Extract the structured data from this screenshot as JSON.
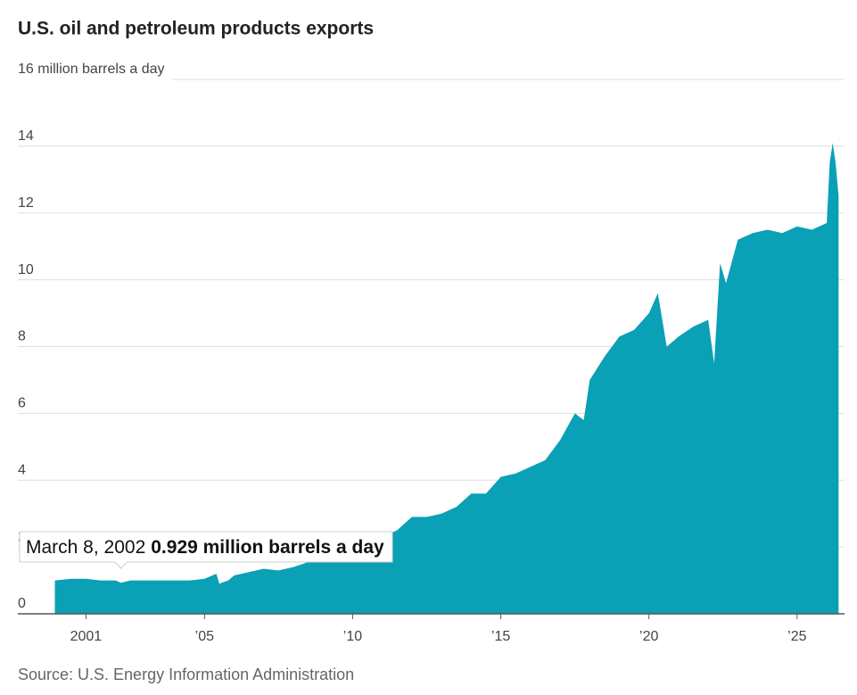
{
  "chart_data": {
    "type": "area",
    "title": "U.S. oil and petroleum products exports",
    "source": "Source: U.S. Energy Information Administration",
    "color": "#0aa0b6",
    "grid": true,
    "x": [
      1999.95,
      2000.5,
      2001,
      2001.5,
      2002,
      2002.18,
      2002.5,
      2003,
      2003.5,
      2004,
      2004.5,
      2005,
      2005.4,
      2005.5,
      2005.8,
      2006,
      2006.5,
      2007,
      2007.5,
      2008,
      2008.5,
      2009,
      2009.5,
      2010,
      2010.5,
      2011,
      2011.5,
      2012,
      2012.5,
      2013,
      2013.5,
      2014,
      2014.5,
      2015,
      2015.5,
      2016,
      2016.5,
      2017,
      2017.5,
      2017.8,
      2018,
      2018.5,
      2019,
      2019.5,
      2020,
      2020.3,
      2020.6,
      2021,
      2021.5,
      2022,
      2022.2,
      2022.4,
      2022.6,
      2023,
      2023.5,
      2024,
      2024.5,
      2025,
      2025.5,
      2026,
      2026.1,
      2026.2,
      2026.3,
      2026.4
    ],
    "values": [
      1.0,
      1.05,
      1.05,
      1.0,
      1.0,
      0.929,
      1.0,
      1.0,
      1.0,
      1.0,
      1.0,
      1.05,
      1.2,
      0.9,
      1.0,
      1.15,
      1.25,
      1.35,
      1.3,
      1.4,
      1.55,
      1.65,
      1.7,
      1.8,
      2.0,
      2.3,
      2.5,
      2.9,
      2.9,
      3.0,
      3.2,
      3.6,
      3.6,
      4.1,
      4.2,
      4.4,
      4.6,
      5.2,
      6.0,
      5.8,
      7.0,
      7.7,
      8.3,
      8.5,
      9.0,
      9.6,
      8.0,
      8.3,
      8.6,
      8.8,
      7.5,
      10.5,
      9.9,
      11.2,
      11.4,
      11.5,
      11.4,
      11.6,
      11.5,
      11.7,
      13.5,
      14.1,
      13.5,
      12.5
    ],
    "xlim": [
      1998.7,
      2026.6
    ],
    "xticks": [
      2001,
      {
        "value": 2005,
        "label": "’05"
      },
      {
        "value": 2010,
        "label": "’10"
      },
      {
        "value": 2015,
        "label": "’15"
      },
      {
        "value": 2020,
        "label": "’20"
      },
      {
        "value": 2025,
        "label": "’25"
      }
    ],
    "ylim": [
      0,
      16
    ],
    "yticks": [
      0,
      2,
      4,
      6,
      8,
      10,
      12,
      14,
      {
        "value": 16,
        "label": "16 million barrels a day"
      }
    ],
    "annotation": {
      "date": "March 8, 2002",
      "x": 2002.18,
      "value": 0.929,
      "value_label": "0.929 million barrels a day"
    }
  }
}
